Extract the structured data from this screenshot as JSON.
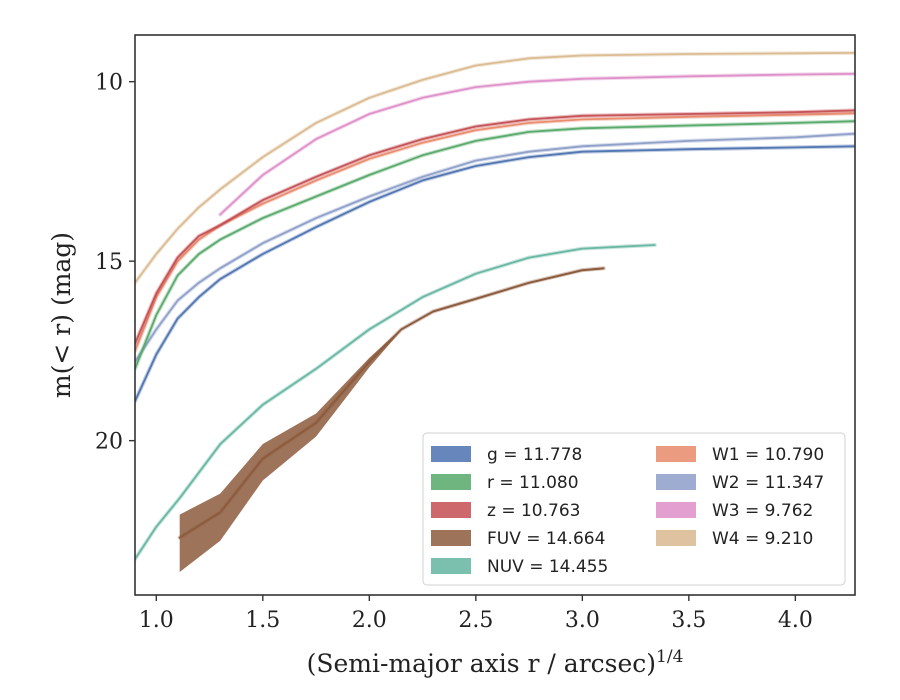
{
  "chart_data": {
    "type": "line",
    "title": "",
    "xlabel": "(Semi-major axis r / arcsec)",
    "xlabel_sup": "1/4",
    "ylabel": "m(< r) (mag)",
    "xlim": [
      0.9,
      4.28
    ],
    "ylim": [
      24.3,
      8.7
    ],
    "y_inverted": true,
    "x_ticks": [
      1.0,
      1.5,
      2.0,
      2.5,
      3.0,
      3.5,
      4.0
    ],
    "x_tick_labels": [
      "1.0",
      "1.5",
      "2.0",
      "2.5",
      "3.0",
      "3.5",
      "4.0"
    ],
    "y_ticks": [
      10,
      15,
      20
    ],
    "y_tick_labels": [
      "10",
      "15",
      "20"
    ],
    "grid": false,
    "legend_position": "lower-right",
    "series": [
      {
        "name": "g = 11.778",
        "color": "#4c72b0",
        "x": [
          0.9,
          1.0,
          1.1,
          1.2,
          1.3,
          1.5,
          1.75,
          2.0,
          2.25,
          2.5,
          2.75,
          3.0,
          3.5,
          4.0,
          4.28
        ],
        "y": [
          18.9,
          17.6,
          16.6,
          16.0,
          15.5,
          14.8,
          14.05,
          13.35,
          12.75,
          12.35,
          12.1,
          11.95,
          11.88,
          11.83,
          11.8
        ]
      },
      {
        "name": "r = 11.080",
        "color": "#55a868",
        "x": [
          0.9,
          1.0,
          1.1,
          1.2,
          1.3,
          1.5,
          1.75,
          2.0,
          2.25,
          2.5,
          2.75,
          3.0,
          3.5,
          4.0,
          4.28
        ],
        "y": [
          18.0,
          16.5,
          15.4,
          14.8,
          14.4,
          13.8,
          13.2,
          12.6,
          12.05,
          11.65,
          11.4,
          11.3,
          11.22,
          11.15,
          11.1
        ]
      },
      {
        "name": "z = 10.763",
        "color": "#c44e52",
        "x": [
          0.9,
          1.0,
          1.1,
          1.2,
          1.3,
          1.5,
          1.75,
          2.0,
          2.25,
          2.5,
          2.75,
          3.0,
          3.5,
          4.0,
          4.28
        ],
        "y": [
          17.3,
          15.9,
          14.9,
          14.3,
          14.0,
          13.3,
          12.65,
          12.05,
          11.6,
          11.25,
          11.05,
          10.95,
          10.9,
          10.85,
          10.8
        ]
      },
      {
        "name": "FUV = 14.664",
        "color": "#8c5a3c",
        "x": [
          1.11,
          1.3,
          1.5,
          1.75,
          2.0,
          2.15,
          2.3,
          2.5,
          2.75,
          3.0,
          3.1
        ],
        "y": [
          22.7,
          22.0,
          20.5,
          19.5,
          17.8,
          16.9,
          16.4,
          16.05,
          15.6,
          15.25,
          15.2
        ]
      },
      {
        "name": "NUV = 14.455",
        "color": "#64b5a0",
        "x": [
          0.9,
          1.0,
          1.11,
          1.3,
          1.5,
          1.75,
          2.0,
          2.25,
          2.5,
          2.75,
          3.0,
          3.34
        ],
        "y": [
          23.3,
          22.4,
          21.6,
          20.1,
          19.0,
          18.0,
          16.9,
          16.0,
          15.35,
          14.9,
          14.65,
          14.55
        ]
      },
      {
        "name": "W1 = 10.790",
        "color": "#e8896a",
        "x": [
          0.9,
          1.0,
          1.1,
          1.2,
          1.3,
          1.5,
          1.75,
          2.0,
          2.25,
          2.5,
          2.75,
          3.0,
          3.5,
          4.0,
          4.28
        ],
        "y": [
          17.5,
          16.0,
          15.0,
          14.4,
          14.0,
          13.4,
          12.75,
          12.15,
          11.7,
          11.35,
          11.15,
          11.05,
          10.98,
          10.92,
          10.88
        ]
      },
      {
        "name": "W2 = 11.347",
        "color": "#8c9dc8",
        "x": [
          0.9,
          1.0,
          1.1,
          1.2,
          1.3,
          1.5,
          1.75,
          2.0,
          2.25,
          2.5,
          2.75,
          3.0,
          3.5,
          4.0,
          4.28
        ],
        "y": [
          17.8,
          16.9,
          16.1,
          15.6,
          15.2,
          14.5,
          13.8,
          13.2,
          12.65,
          12.2,
          11.95,
          11.8,
          11.65,
          11.55,
          11.45
        ]
      },
      {
        "name": "W3 = 9.762",
        "color": "#dd8ec8",
        "x": [
          1.3,
          1.5,
          1.75,
          2.0,
          2.25,
          2.5,
          2.75,
          3.0,
          3.5,
          4.0,
          4.28
        ],
        "y": [
          13.7,
          12.6,
          11.6,
          10.9,
          10.45,
          10.15,
          10.0,
          9.92,
          9.85,
          9.8,
          9.78
        ]
      },
      {
        "name": "W4 = 9.210",
        "color": "#d9b98f",
        "x": [
          0.9,
          1.0,
          1.1,
          1.2,
          1.3,
          1.5,
          1.75,
          2.0,
          2.25,
          2.5,
          2.75,
          3.0,
          3.5,
          4.0,
          4.28
        ],
        "y": [
          15.6,
          14.8,
          14.1,
          13.5,
          13.0,
          12.1,
          11.15,
          10.45,
          9.95,
          9.55,
          9.35,
          9.27,
          9.23,
          9.21,
          9.2
        ]
      }
    ]
  }
}
